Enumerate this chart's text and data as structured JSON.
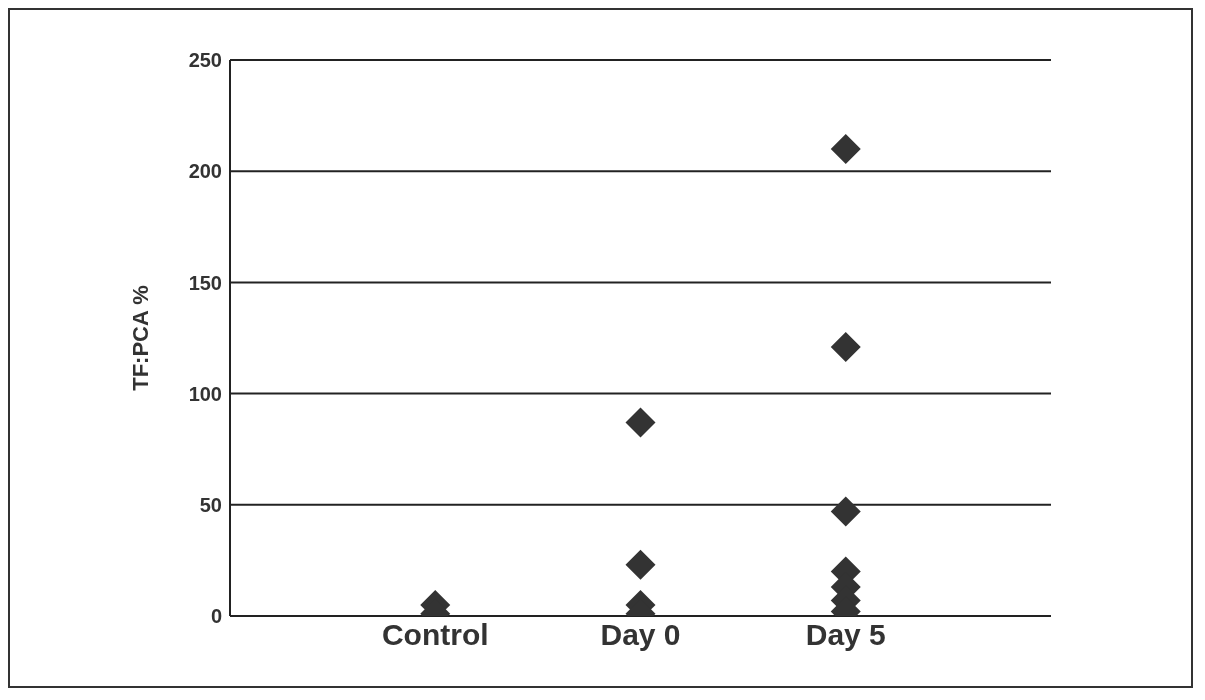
{
  "chart_data": {
    "type": "scatter",
    "ylabel": "TF:PCA %",
    "categories": [
      "Control",
      "Day 0",
      "Day 5"
    ],
    "series": [
      {
        "type": "scatter",
        "color": "#333333",
        "x": [
          "Control",
          "Control",
          "Day 0",
          "Day 0",
          "Day 0",
          "Day 0",
          "Day 5",
          "Day 5",
          "Day 5",
          "Day 5",
          "Day 5",
          "Day 5",
          "Day 5"
        ],
        "values": [
          5,
          1,
          87,
          23,
          5,
          1,
          210,
          121,
          47,
          20,
          13,
          7,
          2
        ]
      }
    ],
    "ylim": [
      0,
      250
    ],
    "yticks": [
      0,
      50,
      100,
      150,
      200,
      250
    ],
    "grid": "y",
    "marker": "diamond",
    "legend": false
  }
}
